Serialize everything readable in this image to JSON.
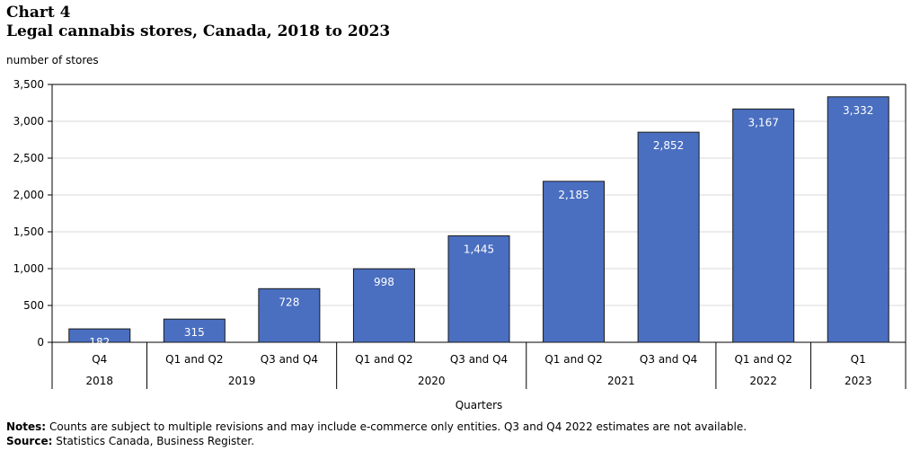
{
  "header": {
    "label": "Chart 4",
    "title": "Legal cannabis stores, Canada, 2018 to 2023"
  },
  "footer": {
    "notes_label": "Notes:",
    "notes_text": "Counts are subject to multiple revisions and may include e-commerce only entities. Q3 and Q4 2022 estimates are not available.",
    "source_label": "Source:",
    "source_text": "Statistics Canada, Business Register."
  },
  "chart_data": {
    "type": "bar",
    "ylabel": "number of stores",
    "xlabel": "Quarters",
    "ylim": [
      0,
      3500
    ],
    "yticks": [
      "0",
      "500",
      "1,000",
      "1,500",
      "2,000",
      "2,500",
      "3,000",
      "3,500"
    ],
    "categories": [
      "Q4",
      "Q1 and Q2",
      "Q3 and Q4",
      "Q1 and Q2",
      "Q3 and Q4",
      "Q1 and Q2",
      "Q3 and Q4",
      "Q1 and Q2",
      "Q1"
    ],
    "values": [
      182,
      315,
      728,
      998,
      1445,
      2185,
      2852,
      3167,
      3332
    ],
    "data_labels": [
      "182",
      "315",
      "728",
      "998",
      "1,445",
      "2,185",
      "2,852",
      "3,167",
      "3,332"
    ],
    "year_groups": [
      {
        "label": "2018",
        "count": 1
      },
      {
        "label": "2019",
        "count": 2
      },
      {
        "label": "2020",
        "count": 2
      },
      {
        "label": "2021",
        "count": 2
      },
      {
        "label": "2022",
        "count": 1
      },
      {
        "label": "2023",
        "count": 1
      }
    ],
    "bar_color": "#4a6fc1",
    "grid": true
  }
}
